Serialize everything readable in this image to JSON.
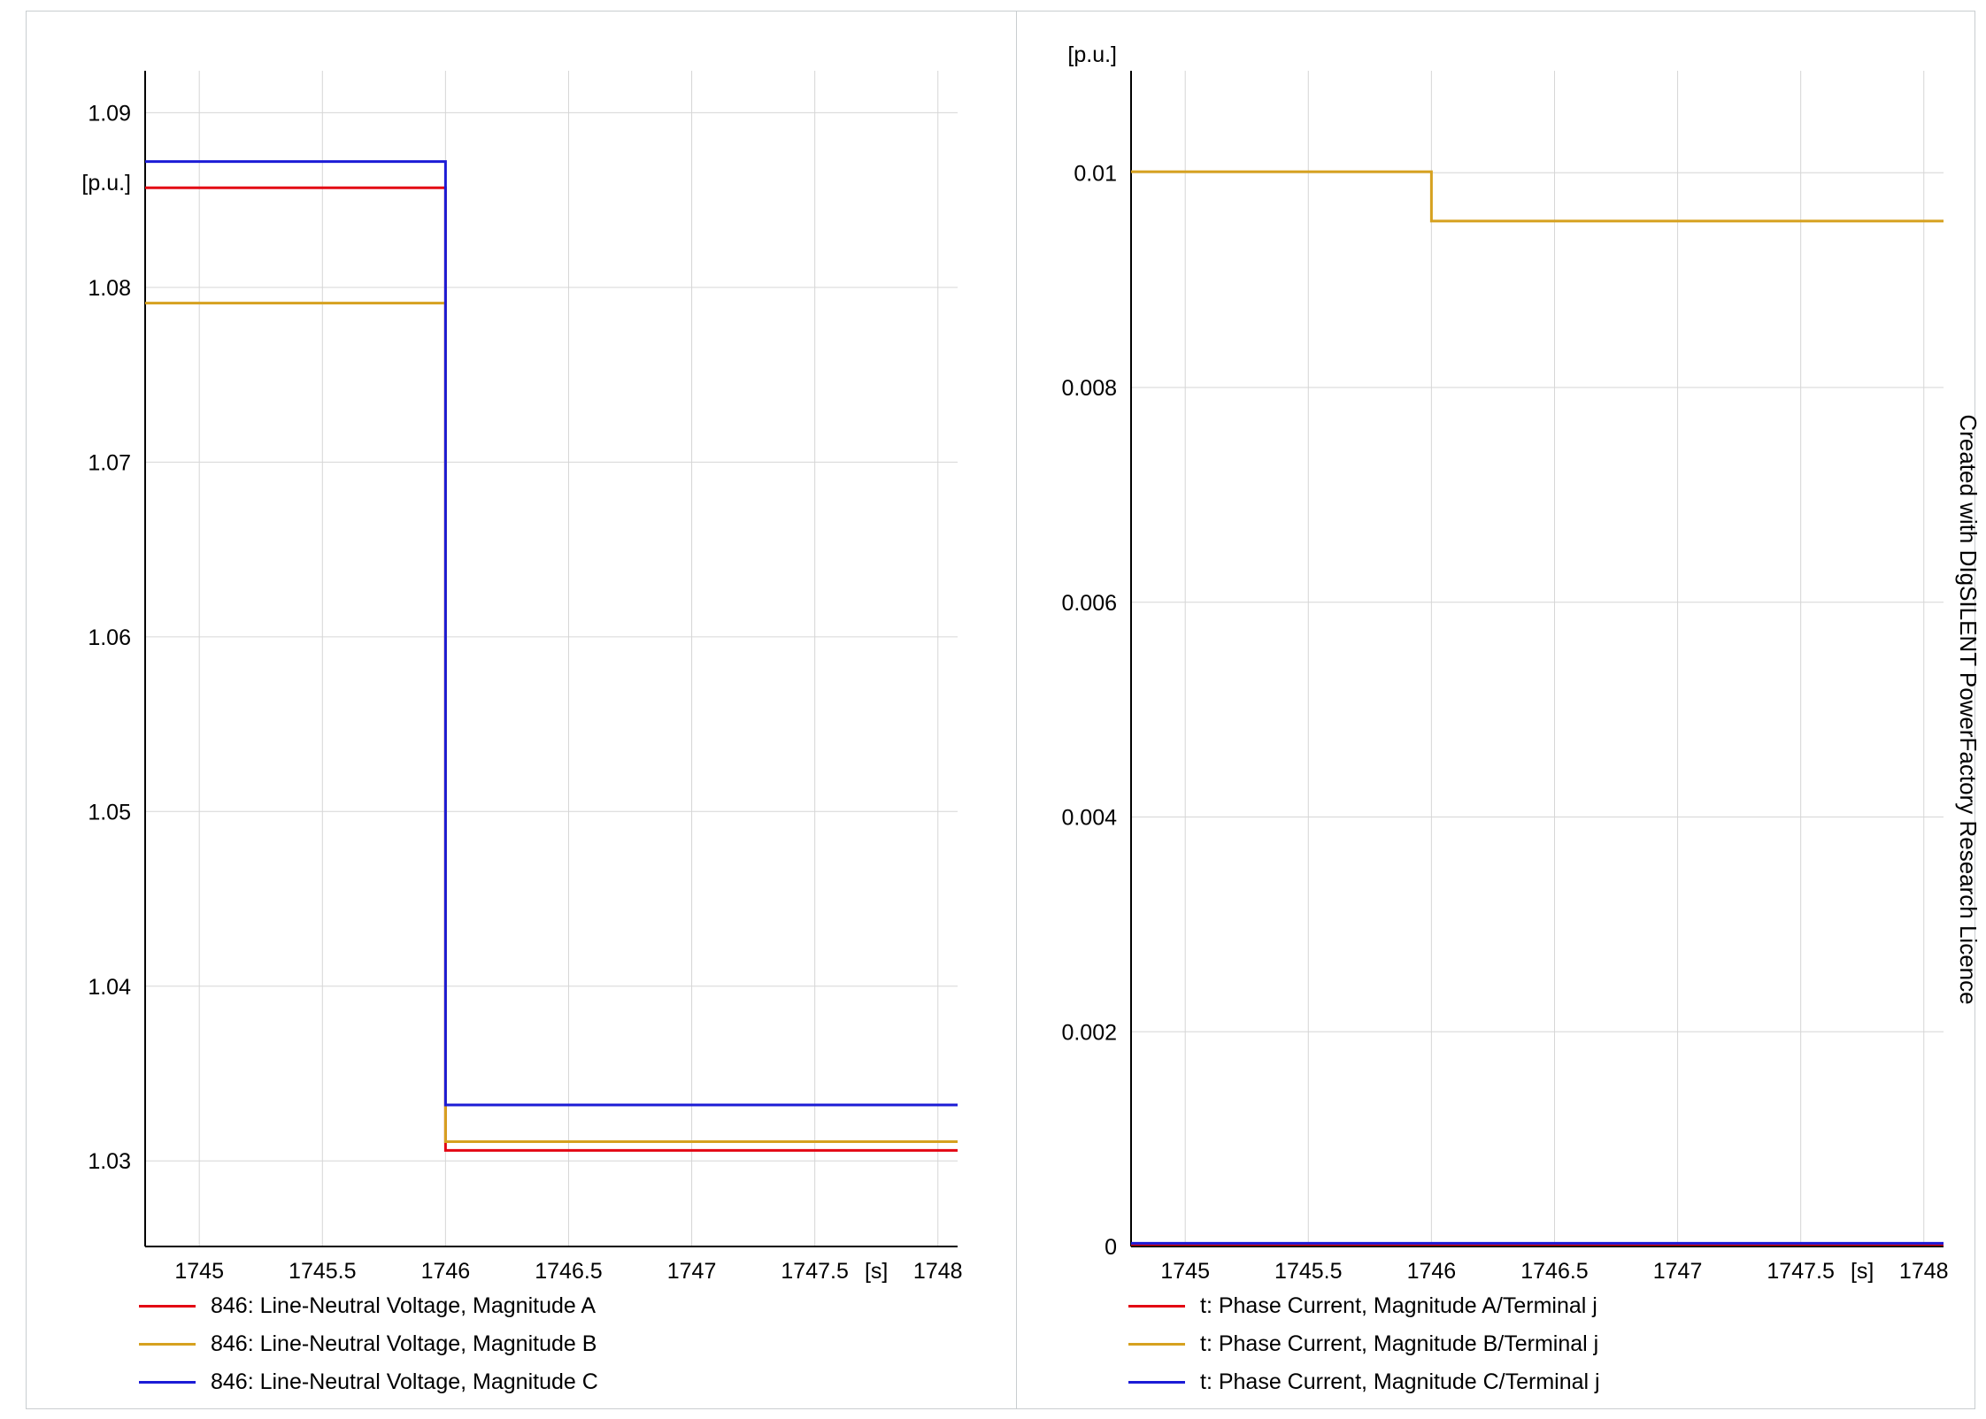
{
  "watermark": "Created with DIgSILENT PowerFactory Research Licence",
  "chart_data": [
    {
      "type": "line",
      "step_style": "step",
      "title": "",
      "xlabel": "",
      "x_unit": "[s]",
      "ylabel": "[p.u.]",
      "grid": true,
      "legend_position": "below",
      "xlim": [
        1744.78,
        1748.08
      ],
      "ylim": [
        1.0251,
        1.0924
      ],
      "x_ticks": [
        "1745",
        "1745.5",
        "1746",
        "1746.5",
        "1747",
        "1747.5",
        "1748"
      ],
      "y_ticks": [
        "1.03",
        "1.04",
        "1.05",
        "1.06",
        "1.07",
        "1.08",
        "1.09"
      ],
      "step_time": 1746,
      "series": [
        {
          "name": "846: Line-Neutral Voltage, Magnitude A",
          "color": "#e30613",
          "before": 1.0857,
          "after": 1.0306
        },
        {
          "name": "846: Line-Neutral Voltage, Magnitude B",
          "color": "#d6a11f",
          "before": 1.0791,
          "after": 1.0311
        },
        {
          "name": "846: Line-Neutral Voltage, Magnitude C",
          "color": "#1c1cd6",
          "before": 1.0872,
          "after": 1.0332
        }
      ]
    },
    {
      "type": "line",
      "step_style": "step",
      "title": "",
      "xlabel": "",
      "x_unit": "[s]",
      "ylabel": "[p.u.]",
      "grid": true,
      "legend_position": "below",
      "xlim": [
        1744.78,
        1748.08
      ],
      "ylim": [
        0,
        0.01095
      ],
      "x_ticks": [
        "1745",
        "1745.5",
        "1746",
        "1746.5",
        "1747",
        "1747.5",
        "1748"
      ],
      "y_ticks": [
        "0",
        "0.002",
        "0.004",
        "0.006",
        "0.008",
        "0.01"
      ],
      "step_time": 1746,
      "series": [
        {
          "name": "t: Phase Current, Magnitude A/Terminal j",
          "color": "#e30613",
          "before": 2e-05,
          "after": 2e-05
        },
        {
          "name": "t: Phase Current, Magnitude B/Terminal j",
          "color": "#d6a11f",
          "before": 0.01001,
          "after": 0.00955
        },
        {
          "name": "t: Phase Current, Magnitude C/Terminal j",
          "color": "#1c1cd6",
          "before": 3e-05,
          "after": 3e-05
        }
      ]
    }
  ]
}
